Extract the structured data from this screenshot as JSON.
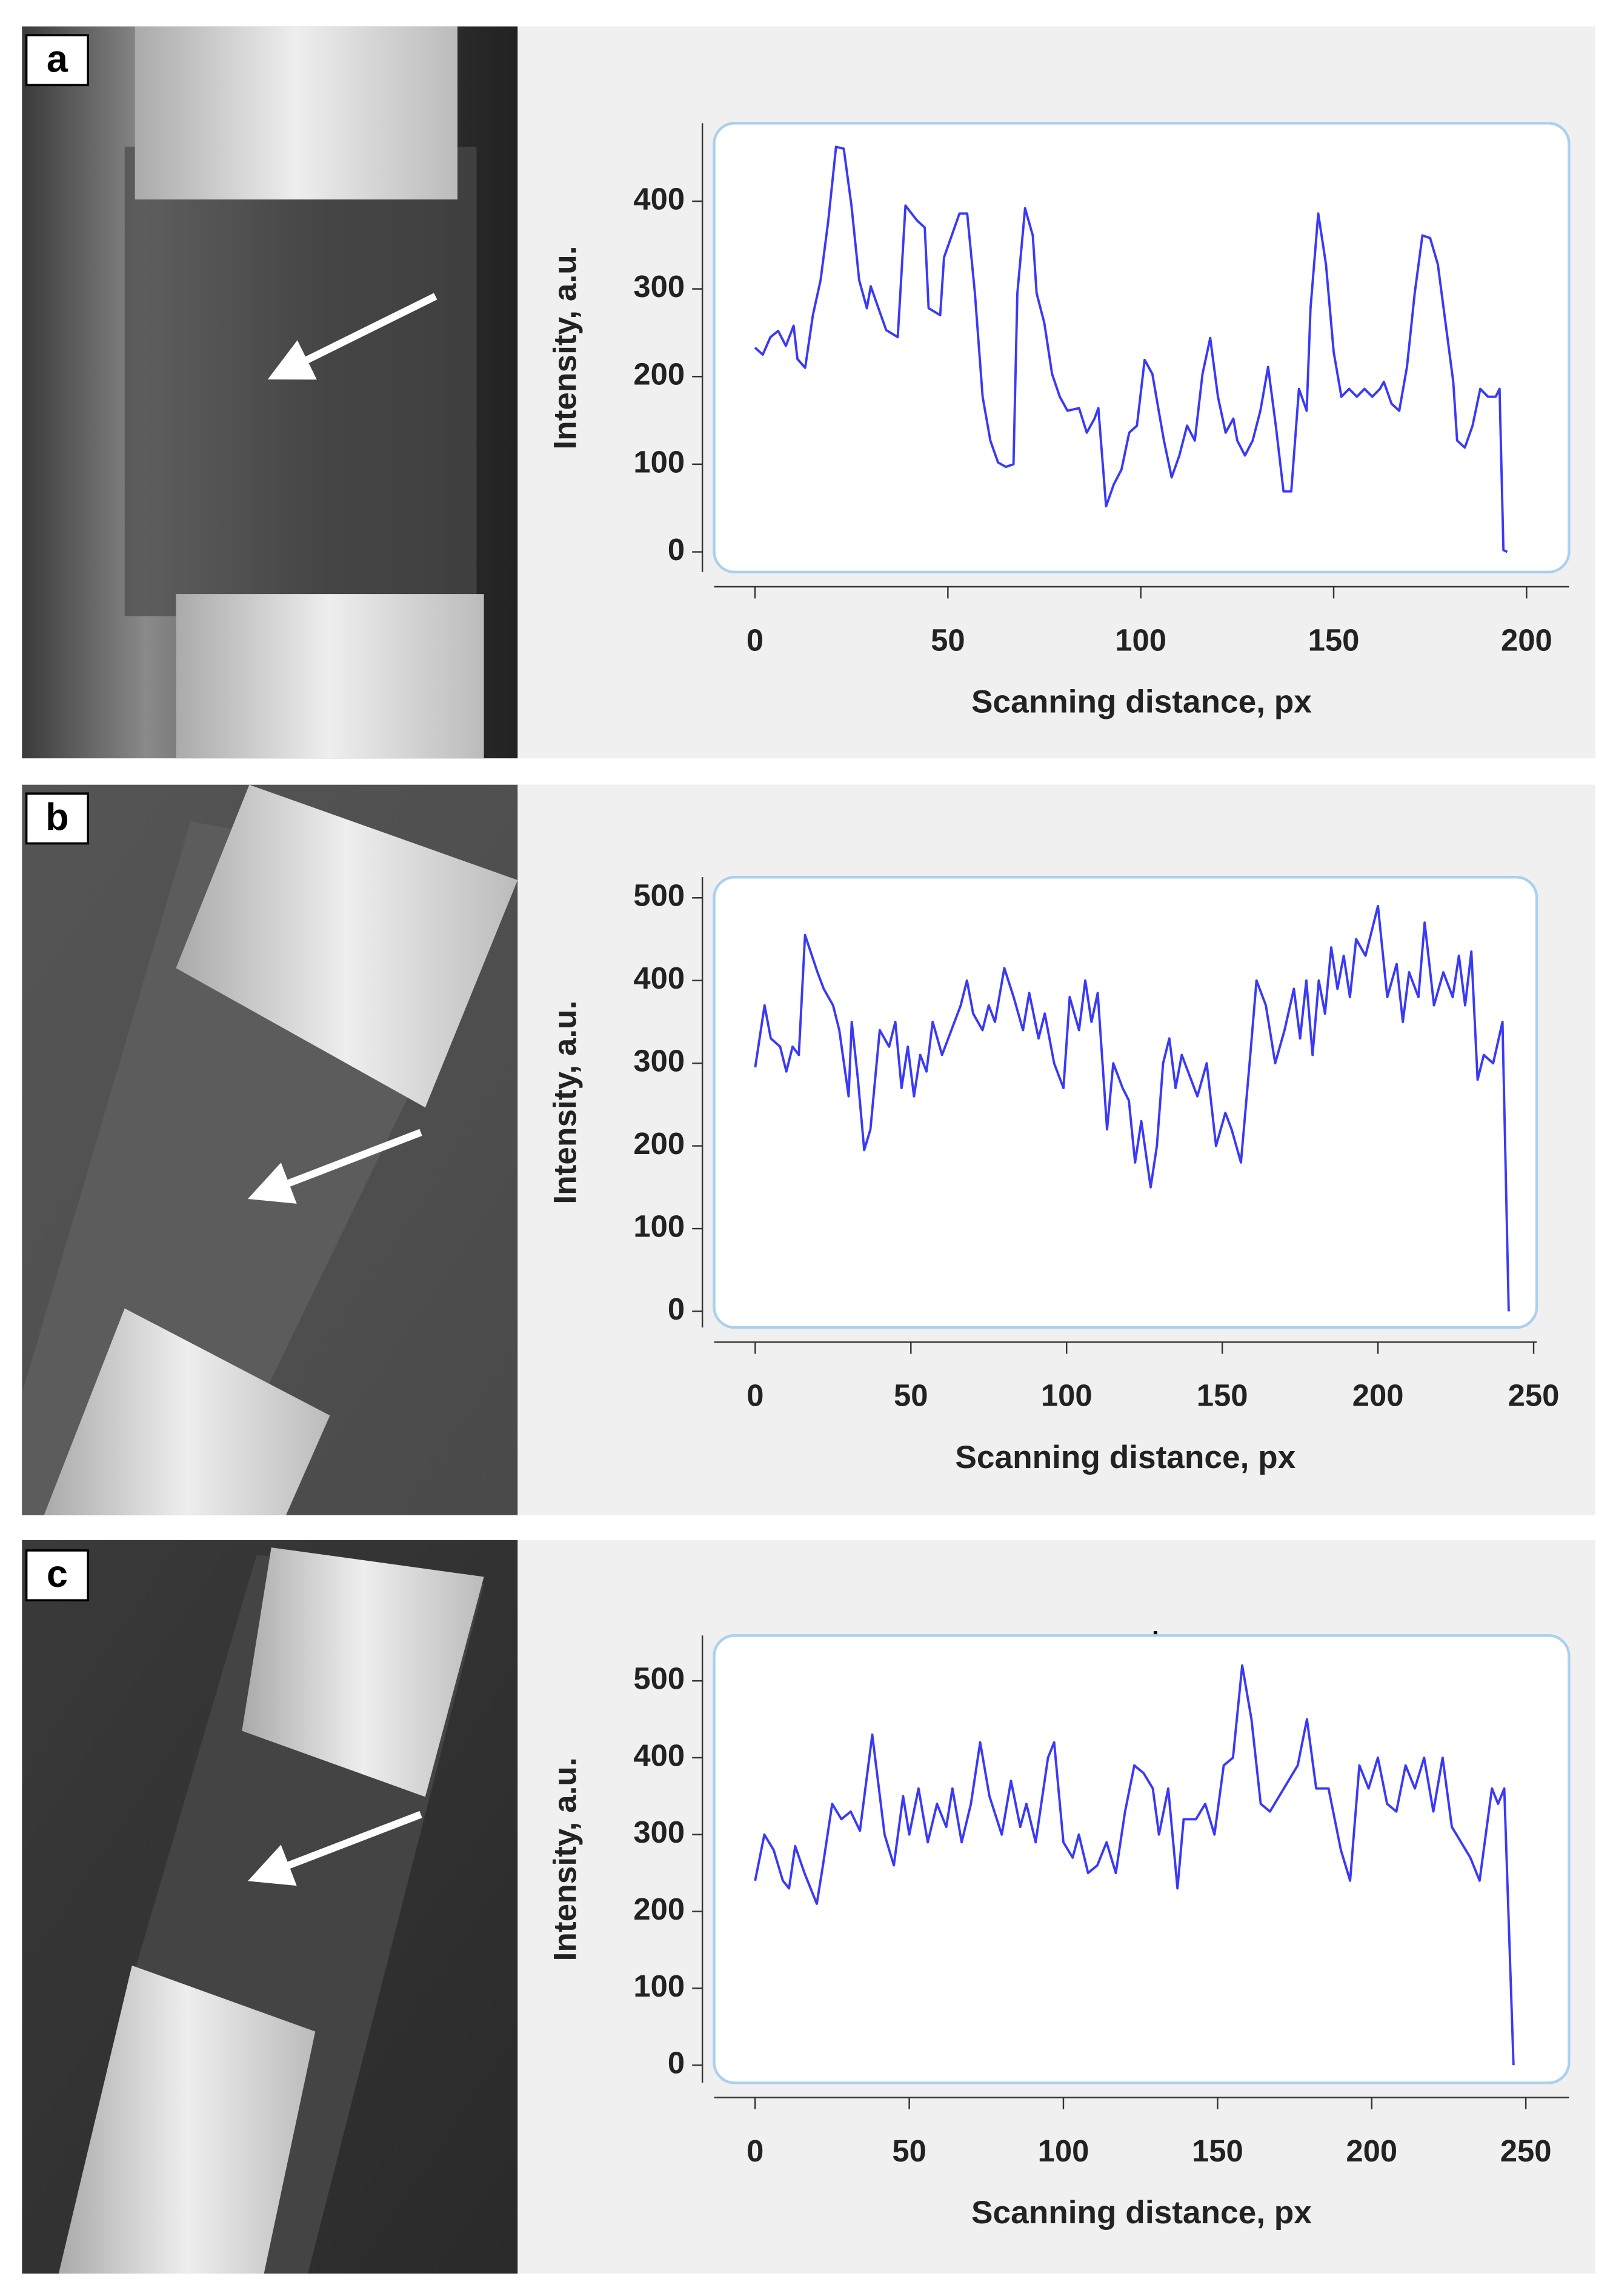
{
  "panels": [
    {
      "label": "a"
    },
    {
      "label": "b"
    },
    {
      "label": "c"
    }
  ],
  "chart_data": [
    {
      "type": "line",
      "xlabel": "Scanning distance, px",
      "ylabel": "Intensity, a.u.",
      "xlim": [
        -10.6,
        211
      ],
      "ylim": [
        -23,
        489
      ],
      "xticks": [
        0,
        50,
        100,
        150,
        200
      ],
      "yticks": [
        0,
        100,
        200,
        300,
        400
      ],
      "x": [
        0,
        2,
        4,
        6,
        8,
        10,
        11,
        13,
        15,
        17,
        19,
        21,
        23,
        25,
        27,
        29,
        30,
        32,
        34,
        37,
        39,
        42,
        44,
        45,
        48,
        49,
        51,
        53,
        55,
        57,
        59,
        61,
        63,
        65,
        67,
        68,
        70,
        72,
        73,
        75,
        77,
        79,
        81,
        84,
        86,
        88,
        89,
        91,
        93,
        95,
        97,
        99,
        101,
        103,
        105,
        106,
        108,
        110,
        112,
        114,
        116,
        118,
        120,
        122,
        124,
        125,
        127,
        129,
        131,
        133,
        135,
        137,
        139,
        141,
        143,
        144,
        146,
        148,
        150,
        152,
        154,
        156,
        158,
        160,
        162,
        163,
        165,
        167,
        169,
        171,
        173,
        175,
        177,
        179,
        181,
        182,
        184,
        186,
        188,
        190,
        192,
        193,
        194,
        195
      ],
      "series": [
        {
          "name": "Intensity",
          "color": "#3a3af5",
          "values": [
            233,
            225,
            245,
            252,
            235,
            258,
            220,
            210,
            270,
            310,
            378,
            462,
            460,
            395,
            310,
            278,
            303,
            278,
            253,
            245,
            395,
            378,
            370,
            278,
            270,
            336,
            361,
            386,
            386,
            295,
            177,
            127,
            102,
            97,
            100,
            295,
            392,
            361,
            295,
            261,
            203,
            177,
            161,
            164,
            136,
            152,
            164,
            52,
            77,
            94,
            136,
            144,
            219,
            203,
            152,
            127,
            85,
            110,
            144,
            127,
            203,
            244,
            177,
            136,
            152,
            127,
            110,
            127,
            161,
            211,
            144,
            69,
            69,
            186,
            161,
            278,
            386,
            328,
            228,
            177,
            186,
            177,
            186,
            177,
            186,
            194,
            169,
            161,
            211,
            295,
            361,
            358,
            328,
            261,
            194,
            127,
            119,
            144,
            186,
            177,
            177,
            186,
            2,
            0
          ]
        }
      ]
    },
    {
      "type": "line",
      "xlabel": "Scanning distance, px",
      "ylabel": "Intensity, a.u.",
      "xlim": [
        -13.2,
        251
      ],
      "ylim": [
        -19.5,
        525
      ],
      "xticks": [
        0,
        50,
        100,
        150,
        200,
        250
      ],
      "yticks": [
        0,
        100,
        200,
        300,
        400,
        500
      ],
      "x": [
        0,
        3,
        5,
        8,
        10,
        12,
        14,
        16,
        20,
        22,
        25,
        27,
        30,
        31,
        33,
        35,
        37,
        40,
        43,
        45,
        47,
        49,
        51,
        53,
        55,
        57,
        60,
        63,
        66,
        68,
        70,
        73,
        75,
        77,
        80,
        83,
        86,
        88,
        91,
        93,
        96,
        99,
        101,
        104,
        106,
        108,
        110,
        113,
        115,
        118,
        120,
        122,
        124,
        127,
        129,
        131,
        133,
        135,
        137,
        140,
        142,
        145,
        148,
        151,
        153,
        156,
        159,
        161,
        164,
        167,
        170,
        173,
        175,
        177,
        179,
        181,
        183,
        185,
        187,
        189,
        191,
        193,
        196,
        200,
        203,
        206,
        208,
        210,
        213,
        215,
        218,
        221,
        224,
        226,
        228,
        230,
        232,
        234,
        237,
        240,
        242
      ],
      "series": [
        {
          "name": "Intensity",
          "color": "#3a3af5",
          "values": [
            295,
            370,
            330,
            320,
            290,
            320,
            310,
            455,
            410,
            390,
            370,
            340,
            260,
            350,
            280,
            195,
            220,
            340,
            320,
            350,
            270,
            320,
            260,
            310,
            290,
            350,
            310,
            340,
            370,
            400,
            360,
            340,
            370,
            350,
            415,
            380,
            340,
            385,
            330,
            360,
            300,
            270,
            380,
            340,
            400,
            350,
            385,
            220,
            300,
            270,
            255,
            180,
            230,
            150,
            200,
            300,
            330,
            270,
            310,
            280,
            260,
            300,
            200,
            240,
            220,
            180,
            310,
            400,
            370,
            300,
            340,
            390,
            330,
            400,
            310,
            400,
            360,
            440,
            390,
            430,
            380,
            450,
            430,
            490,
            380,
            420,
            350,
            410,
            380,
            470,
            370,
            410,
            380,
            430,
            370,
            435,
            280,
            310,
            300,
            350,
            0
          ]
        }
      ]
    },
    {
      "type": "line",
      "xlabel": "Scanning distance, px",
      "ylabel": "Intensity, a.u.",
      "xlim": [
        -13.3,
        264
      ],
      "ylim": [
        -23,
        559
      ],
      "xticks": [
        0,
        50,
        100,
        150,
        200,
        250
      ],
      "yticks": [
        0,
        100,
        200,
        300,
        400,
        500
      ],
      "x": [
        0,
        3,
        6,
        9,
        11,
        13,
        16,
        20,
        22,
        25,
        28,
        31,
        34,
        38,
        42,
        45,
        48,
        50,
        53,
        56,
        59,
        62,
        64,
        67,
        70,
        73,
        76,
        80,
        83,
        86,
        88,
        91,
        95,
        97,
        100,
        103,
        105,
        108,
        111,
        114,
        117,
        120,
        123,
        126,
        129,
        131,
        134,
        137,
        139,
        143,
        146,
        149,
        152,
        155,
        158,
        161,
        164,
        167,
        170,
        173,
        176,
        179,
        182,
        186,
        190,
        193,
        196,
        199,
        202,
        205,
        208,
        211,
        214,
        217,
        220,
        223,
        226,
        229,
        232,
        235,
        239,
        241,
        243,
        246
      ],
      "series": [
        {
          "name": "Intensity",
          "color": "#3a3af5",
          "values": [
            240,
            300,
            280,
            240,
            230,
            285,
            250,
            210,
            260,
            340,
            320,
            330,
            305,
            430,
            300,
            260,
            350,
            300,
            360,
            290,
            340,
            310,
            360,
            290,
            340,
            420,
            350,
            300,
            370,
            310,
            340,
            290,
            400,
            420,
            290,
            270,
            300,
            250,
            260,
            290,
            250,
            330,
            390,
            380,
            360,
            300,
            360,
            230,
            320,
            320,
            340,
            300,
            390,
            400,
            520,
            450,
            340,
            330,
            350,
            370,
            390,
            450,
            360,
            360,
            280,
            240,
            390,
            360,
            400,
            340,
            330,
            390,
            360,
            400,
            330,
            400,
            310,
            290,
            270,
            240,
            360,
            340,
            360,
            0
          ]
        }
      ]
    }
  ]
}
